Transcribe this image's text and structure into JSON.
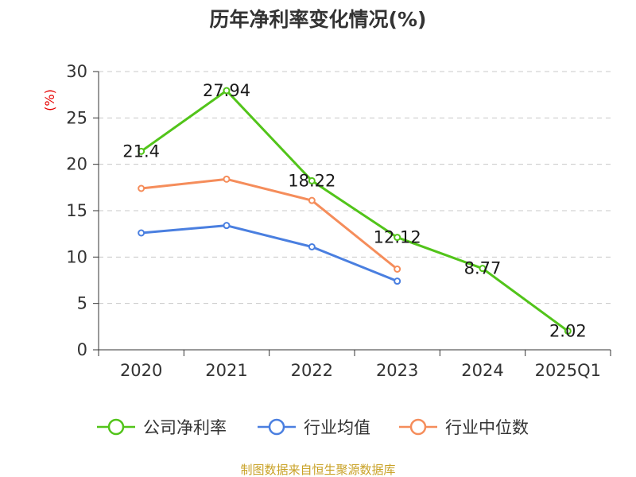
{
  "chart_data": {
    "type": "line",
    "title": "历年净利率变化情况(%)",
    "unit_label": "(%)",
    "categories": [
      "2020",
      "2021",
      "2022",
      "2023",
      "2024",
      "2025Q1"
    ],
    "y_ticks": [
      "0",
      "5",
      "10",
      "15",
      "20",
      "25",
      "30"
    ],
    "ylim": [
      0,
      30
    ],
    "grid": true,
    "legend_position": "bottom",
    "series": [
      {
        "name": "公司净利率",
        "color": "#52c41a",
        "values": [
          21.4,
          27.94,
          18.22,
          12.12,
          8.77,
          2.02
        ],
        "labels": [
          "21.4",
          "27.94",
          "18.22",
          "12.12",
          "8.77",
          "2.02"
        ]
      },
      {
        "name": "行业均值",
        "color": "#4a7fe0",
        "values": [
          12.6,
          13.4,
          11.1,
          7.4,
          null,
          null
        ],
        "labels": []
      },
      {
        "name": "行业中位数",
        "color": "#f58d5b",
        "values": [
          17.4,
          18.4,
          16.1,
          8.7,
          null,
          null
        ],
        "labels": []
      }
    ]
  },
  "source_note": "制图数据来自恒生聚源数据库"
}
